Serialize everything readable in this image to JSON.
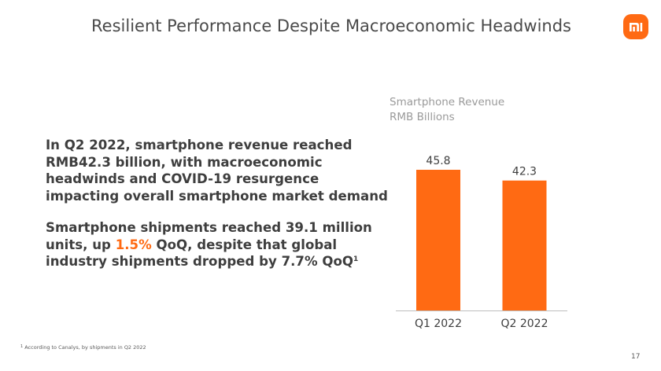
{
  "header": {
    "title": "Resilient Performance Despite Macroeconomic Headwinds",
    "logo": "xiaomi-mi-logo",
    "logo_text": "mi"
  },
  "body": {
    "paragraph1": "In Q2 2022, smartphone revenue reached RMB42.3 billion, with macroeconomic headwinds and COVID-19 resurgence impacting overall smartphone market demand",
    "paragraph2_before": "Smartphone shipments reached 39.1 million units, up ",
    "paragraph2_highlight": "1.5%",
    "paragraph2_after": " QoQ, despite that global industry shipments dropped by 7.7% QoQ",
    "paragraph2_footnote_ref": "1"
  },
  "footnote": {
    "marker": "1",
    "text": " According to Canalys, by shipments in Q2 2022"
  },
  "page_number": "17",
  "colors": {
    "accent": "#ff6a13",
    "text": "#3e3e3e",
    "muted": "#9a9a9a"
  },
  "chart_data": {
    "type": "bar",
    "title": "Smartphone Revenue",
    "subtitle": "RMB Billions",
    "categories": [
      "Q1 2022",
      "Q2 2022"
    ],
    "values": [
      45.8,
      42.3
    ],
    "value_labels": [
      "45.8",
      "42.3"
    ],
    "xlabel": "",
    "ylabel": "",
    "ylim": [
      0,
      45.8
    ],
    "grid": false,
    "legend": "none",
    "bar_color": "#ff6a13"
  }
}
